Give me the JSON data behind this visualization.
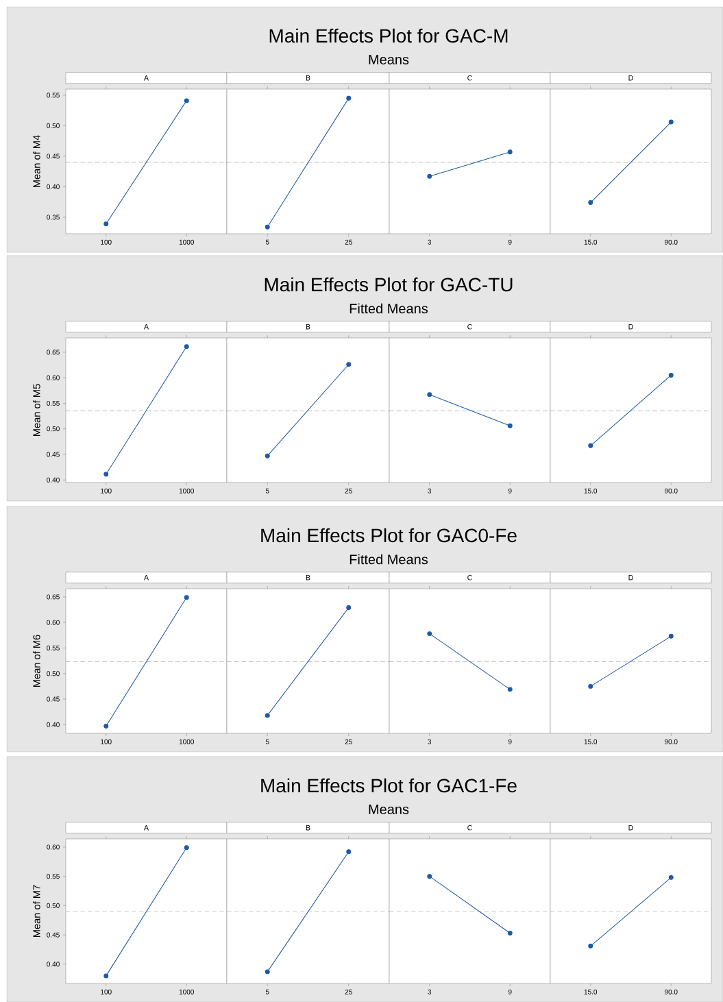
{
  "chart_data": [
    {
      "type": "other",
      "title": "Main Effects Plot for GAC-M",
      "subtitle": "Means"
    },
    {
      "type": "line",
      "title": "A",
      "ylabel": "Mean of M4",
      "categories": [
        "100",
        "1000"
      ],
      "values": [
        0.339,
        0.541
      ],
      "color": "#1e5aa8",
      "marker": "circle",
      "ylim": [
        0.323,
        0.56
      ],
      "yticks": [
        0.35,
        {
          "value": 0.4,
          "label": "0.40"
        },
        0.45,
        {
          "value": 0.5,
          "label": "0.50"
        },
        0.55
      ],
      "ref_lines": [
        {
          "axis": "y",
          "value": 0.44
        }
      ]
    },
    {
      "type": "line",
      "title": "B",
      "categories": [
        "5",
        "25"
      ],
      "values": [
        0.334,
        0.545
      ],
      "color": "#1e5aa8",
      "marker": "circle",
      "ylim": [
        0.323,
        0.56
      ],
      "tick_labels": "x",
      "ref_lines": [
        {
          "axis": "y",
          "value": 0.44
        }
      ]
    },
    {
      "type": "line",
      "title": "C",
      "categories": [
        "3",
        "9"
      ],
      "values": [
        0.417,
        0.457
      ],
      "color": "#1e5aa8",
      "marker": "circle",
      "ylim": [
        0.323,
        0.56
      ],
      "tick_labels": "x",
      "ref_lines": [
        {
          "axis": "y",
          "value": 0.44
        }
      ]
    },
    {
      "type": "line",
      "title": "D",
      "categories": [
        "15.0",
        "90.0"
      ],
      "values": [
        0.374,
        0.506
      ],
      "color": "#1e5aa8",
      "marker": "circle",
      "ylim": [
        0.323,
        0.56
      ],
      "tick_labels": "x",
      "ref_lines": [
        {
          "axis": "y",
          "value": 0.44
        }
      ]
    },
    {
      "type": "other",
      "title": "Main Effects Plot for GAC-TU",
      "subtitle": "Fitted Means"
    },
    {
      "type": "line",
      "title": "A",
      "ylabel": "Mean of M5",
      "categories": [
        "100",
        "1000"
      ],
      "values": [
        0.411,
        0.661
      ],
      "color": "#1e5aa8",
      "marker": "circle",
      "ylim": [
        0.395,
        0.678
      ],
      "yticks": [
        {
          "value": 0.4,
          "label": "0.40"
        },
        0.45,
        {
          "value": 0.5,
          "label": "0.50"
        },
        0.55,
        {
          "value": 0.6,
          "label": "0.60"
        },
        0.65
      ],
      "ref_lines": [
        {
          "axis": "y",
          "value": 0.535
        }
      ]
    },
    {
      "type": "line",
      "title": "B",
      "categories": [
        "5",
        "25"
      ],
      "values": [
        0.447,
        0.626
      ],
      "color": "#1e5aa8",
      "marker": "circle",
      "ylim": [
        0.395,
        0.678
      ],
      "tick_labels": "x",
      "ref_lines": [
        {
          "axis": "y",
          "value": 0.535
        }
      ]
    },
    {
      "type": "line",
      "title": "C",
      "categories": [
        "3",
        "9"
      ],
      "values": [
        0.567,
        0.506
      ],
      "color": "#1e5aa8",
      "marker": "circle",
      "ylim": [
        0.395,
        0.678
      ],
      "tick_labels": "x",
      "ref_lines": [
        {
          "axis": "y",
          "value": 0.535
        }
      ]
    },
    {
      "type": "line",
      "title": "D",
      "categories": [
        "15.0",
        "90.0"
      ],
      "values": [
        0.467,
        0.605
      ],
      "color": "#1e5aa8",
      "marker": "circle",
      "ylim": [
        0.395,
        0.678
      ],
      "tick_labels": "x",
      "ref_lines": [
        {
          "axis": "y",
          "value": 0.535
        }
      ]
    },
    {
      "type": "other",
      "title": "Main Effects Plot for GAC0-Fe",
      "subtitle": "Fitted Means"
    },
    {
      "type": "line",
      "title": "A",
      "ylabel": "Mean of M6",
      "categories": [
        "100",
        "1000"
      ],
      "values": [
        0.397,
        0.649
      ],
      "color": "#1e5aa8",
      "marker": "circle",
      "ylim": [
        0.383,
        0.666
      ],
      "yticks": [
        {
          "value": 0.4,
          "label": "0.40"
        },
        0.45,
        {
          "value": 0.5,
          "label": "0.50"
        },
        0.55,
        {
          "value": 0.6,
          "label": "0.60"
        },
        0.65
      ],
      "ref_lines": [
        {
          "axis": "y",
          "value": 0.523
        }
      ]
    },
    {
      "type": "line",
      "title": "B",
      "categories": [
        "5",
        "25"
      ],
      "values": [
        0.418,
        0.629
      ],
      "color": "#1e5aa8",
      "marker": "circle",
      "ylim": [
        0.383,
        0.666
      ],
      "tick_labels": "x",
      "ref_lines": [
        {
          "axis": "y",
          "value": 0.523
        }
      ]
    },
    {
      "type": "line",
      "title": "C",
      "categories": [
        "3",
        "9"
      ],
      "values": [
        0.578,
        0.469
      ],
      "color": "#1e5aa8",
      "marker": "circle",
      "ylim": [
        0.383,
        0.666
      ],
      "tick_labels": "x",
      "ref_lines": [
        {
          "axis": "y",
          "value": 0.523
        }
      ]
    },
    {
      "type": "line",
      "title": "D",
      "categories": [
        "15.0",
        "90.0"
      ],
      "values": [
        0.475,
        0.573
      ],
      "color": "#1e5aa8",
      "marker": "circle",
      "ylim": [
        0.383,
        0.666
      ],
      "tick_labels": "x",
      "ref_lines": [
        {
          "axis": "y",
          "value": 0.523
        }
      ]
    },
    {
      "type": "other",
      "title": "Main Effects Plot for GAC1-Fe",
      "subtitle": "Means"
    },
    {
      "type": "line",
      "title": "A",
      "ylabel": "Mean of M7",
      "categories": [
        "100",
        "1000"
      ],
      "values": [
        0.38,
        0.599
      ],
      "color": "#1e5aa8",
      "marker": "circle",
      "ylim": [
        0.367,
        0.614
      ],
      "yticks": [
        {
          "value": 0.4,
          "label": "0.40"
        },
        0.45,
        {
          "value": 0.5,
          "label": "0.50"
        },
        0.55,
        {
          "value": 0.6,
          "label": "0.60"
        }
      ],
      "ref_lines": [
        {
          "axis": "y",
          "value": 0.49
        }
      ]
    },
    {
      "type": "line",
      "title": "B",
      "categories": [
        "5",
        "25"
      ],
      "values": [
        0.387,
        0.592
      ],
      "color": "#1e5aa8",
      "marker": "circle",
      "ylim": [
        0.367,
        0.614
      ],
      "tick_labels": "x",
      "ref_lines": [
        {
          "axis": "y",
          "value": 0.49
        }
      ]
    },
    {
      "type": "line",
      "title": "C",
      "categories": [
        "3",
        "9"
      ],
      "values": [
        0.55,
        0.453
      ],
      "color": "#1e5aa8",
      "marker": "circle",
      "ylim": [
        0.367,
        0.614
      ],
      "tick_labels": "x",
      "ref_lines": [
        {
          "axis": "y",
          "value": 0.49
        }
      ]
    },
    {
      "type": "line",
      "title": "D",
      "categories": [
        "15.0",
        "90.0"
      ],
      "values": [
        0.431,
        0.548
      ],
      "color": "#1e5aa8",
      "marker": "circle",
      "ylim": [
        0.367,
        0.614
      ],
      "tick_labels": "x",
      "ref_lines": [
        {
          "axis": "y",
          "value": 0.49
        }
      ]
    }
  ]
}
